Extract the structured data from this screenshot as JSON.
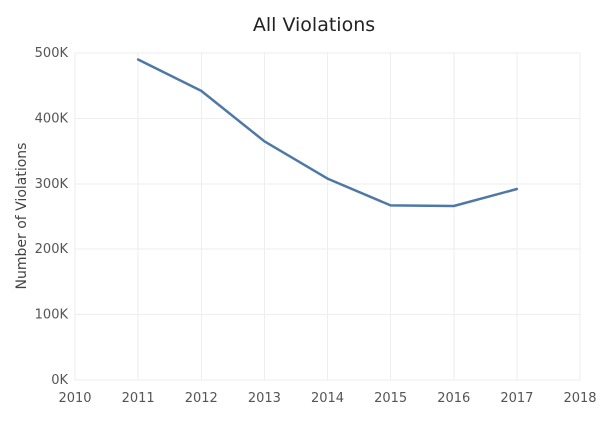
{
  "chart_data": {
    "type": "line",
    "title": "All Violations",
    "xlabel": "",
    "ylabel": "Number of Violations",
    "x": [
      2011,
      2012,
      2013,
      2014,
      2015,
      2016,
      2017
    ],
    "series": [
      {
        "name": "All Violations",
        "values": [
          490000,
          442000,
          365000,
          308000,
          267000,
          266000,
          292000
        ]
      }
    ],
    "xticks": [
      "2010",
      "2011",
      "2012",
      "2013",
      "2014",
      "2015",
      "2016",
      "2017",
      "2018"
    ],
    "yticks": [
      "0K",
      "100K",
      "200K",
      "300K",
      "400K",
      "500K"
    ],
    "xlim": [
      2010,
      2018
    ],
    "ylim": [
      0,
      500000
    ],
    "grid": true,
    "line_color": "#4e79a7"
  }
}
